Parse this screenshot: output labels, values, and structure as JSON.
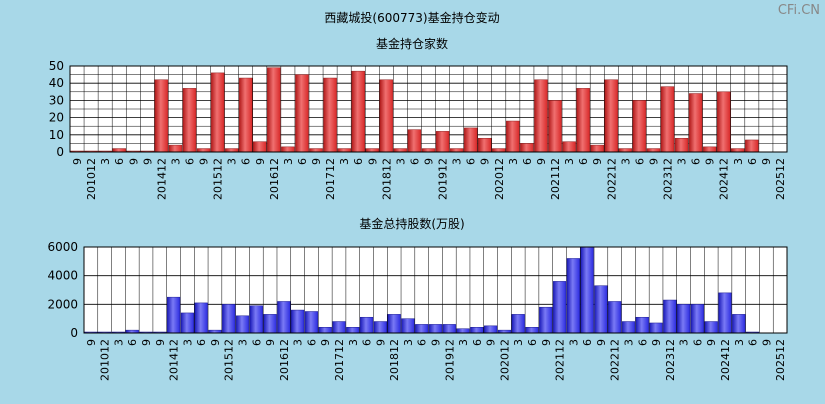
{
  "title": "西藏城投(600773)基金持仓变动",
  "watermark": "CFi.CN",
  "colors": {
    "background": "#a8d8e8",
    "bar_top": "#e03030",
    "bar_bottom": "#3434e6",
    "grid": "#000000"
  },
  "x_labels": [
    "9",
    "201012",
    "3",
    "6",
    "9",
    "9",
    "201412",
    "3",
    "6",
    "9",
    "201512",
    "3",
    "6",
    "9",
    "201612",
    "3",
    "6",
    "9",
    "201712",
    "3",
    "6",
    "9",
    "201812",
    "3",
    "6",
    "9",
    "201912",
    "3",
    "6",
    "9",
    "202012",
    "3",
    "6",
    "9",
    "202112",
    "3",
    "6",
    "9",
    "202212",
    "3",
    "6",
    "9",
    "202312",
    "3",
    "6",
    "9",
    "202412",
    "3",
    "6",
    "9",
    "202512"
  ],
  "chart_data": [
    {
      "type": "bar",
      "title": "基金持仓家数",
      "ylim": [
        0,
        50
      ],
      "yticks": [
        0,
        10,
        20,
        30,
        40,
        50
      ],
      "values": [
        0.5,
        0.5,
        0.5,
        2,
        0.5,
        0.5,
        42,
        4,
        37,
        2,
        46,
        2,
        43,
        6,
        49,
        3,
        45,
        2,
        43,
        2,
        47,
        2,
        42,
        2,
        13,
        2,
        12,
        2,
        14,
        8,
        2,
        18,
        5,
        42,
        30,
        6,
        37,
        4,
        42,
        2,
        30,
        2,
        38,
        8,
        34,
        3,
        35,
        2,
        7,
        0,
        0
      ]
    },
    {
      "type": "bar",
      "title": "基金总持股数(万股)",
      "ylim": [
        0,
        6000
      ],
      "yticks": [
        0,
        2000,
        4000,
        6000
      ],
      "values": [
        50,
        50,
        50,
        200,
        50,
        50,
        2500,
        1400,
        2100,
        200,
        2000,
        1200,
        1900,
        1300,
        2200,
        1600,
        1500,
        400,
        800,
        400,
        1100,
        800,
        1300,
        1000,
        600,
        600,
        600,
        300,
        400,
        500,
        200,
        1300,
        400,
        1800,
        3600,
        5200,
        6000,
        3300,
        2200,
        800,
        1100,
        700,
        2300,
        2000,
        2000,
        800,
        2800,
        1300,
        50,
        0,
        0
      ]
    }
  ]
}
